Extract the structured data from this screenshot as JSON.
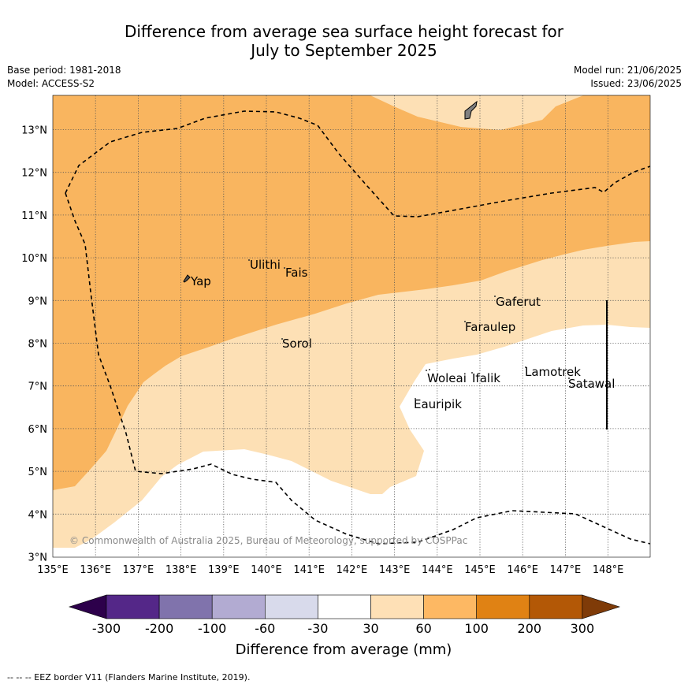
{
  "title": {
    "line1": "Difference from average sea surface height forecast for",
    "line2": "July to September 2025"
  },
  "meta_left": {
    "base_period": "Base period: 1981-2018",
    "model": "Model: ACCESS-S2"
  },
  "meta_right": {
    "model_run": "Model run: 21/06/2025",
    "issued": "Issued: 23/06/2025"
  },
  "map": {
    "lon_labels": [
      "135°E",
      "136°E",
      "137°E",
      "138°E",
      "139°E",
      "140°E",
      "141°E",
      "142°E",
      "143°E",
      "144°E",
      "145°E",
      "146°E",
      "147°E",
      "148°E"
    ],
    "lat_labels": [
      "13°N",
      "12°N",
      "11°N",
      "10°N",
      "9°N",
      "8°N",
      "7°N",
      "6°N",
      "5°N",
      "4°N",
      "3°N"
    ],
    "places": [
      "Yap",
      "Ulithi",
      "Fais",
      "Sorol",
      "Gaferut",
      "Faraulep",
      "Woleai",
      "Ifalik",
      "Lamotrek",
      "Satawal",
      "Eauripik"
    ],
    "copyright": "© Commonwealth of Australia 2025, Bureau of Meteorology, supported by COSPPac",
    "colors": {
      "band_30_60": "#fde0b5",
      "band_60_100": "#f9b55f",
      "ocean_neutral": "#ffffff",
      "land": "#808080"
    }
  },
  "colorbar": {
    "ticks": [
      "-300",
      "-200",
      "-100",
      "-60",
      "-30",
      "30",
      "60",
      "100",
      "200",
      "300"
    ],
    "colors": [
      "#2d004b",
      "#542788",
      "#8073ac",
      "#b2abd2",
      "#d8daeb",
      "#ffffff",
      "#fee0b6",
      "#fdb863",
      "#e08214",
      "#b35806",
      "#7f3b08"
    ],
    "title": "Difference from average (mm)"
  },
  "footnote": "--  --  -- EEZ border V11 (Flanders Marine Institute, 2019)."
}
